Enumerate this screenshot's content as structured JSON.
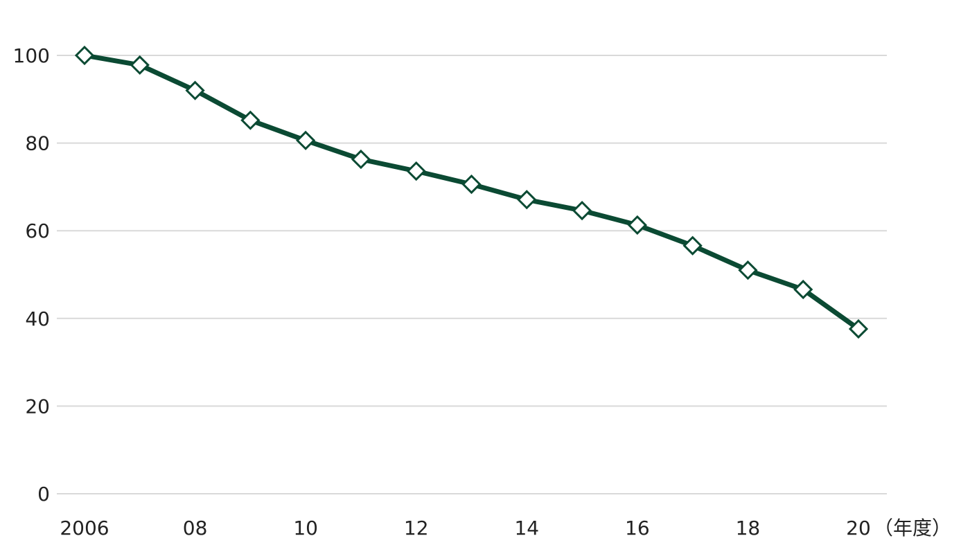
{
  "chart_data": {
    "type": "line",
    "x": [
      2006,
      2007,
      2008,
      2009,
      2010,
      2011,
      2012,
      2013,
      2014,
      2015,
      2016,
      2017,
      2018,
      2019,
      2020
    ],
    "series": [
      {
        "values": [
          100,
          97.8,
          92,
          85.2,
          80.6,
          76.3,
          73.6,
          70.6,
          67.1,
          64.6,
          61.3,
          56.6,
          51,
          46.6,
          37.6
        ]
      }
    ],
    "xlabel": "",
    "ylabel": "",
    "x_unit_label": "（年度）",
    "xlim": [
      2006,
      2020
    ],
    "ylim": [
      0,
      100
    ],
    "y_ticks": [
      0,
      20,
      40,
      60,
      80,
      100
    ],
    "x_ticks": [
      {
        "value": 2006,
        "label": "2006"
      },
      {
        "value": 2008,
        "label": "08"
      },
      {
        "value": 2010,
        "label": "10"
      },
      {
        "value": 2012,
        "label": "12"
      },
      {
        "value": 2014,
        "label": "14"
      },
      {
        "value": 2016,
        "label": "16"
      },
      {
        "value": 2018,
        "label": "18"
      },
      {
        "value": 2020,
        "label": "20"
      }
    ],
    "grid": "horizontal",
    "marker": "diamond-open",
    "colors": {
      "line": "#0b4a33",
      "grid": "#d9d9d9",
      "marker_fill": "#ffffff",
      "text": "#222222"
    }
  }
}
